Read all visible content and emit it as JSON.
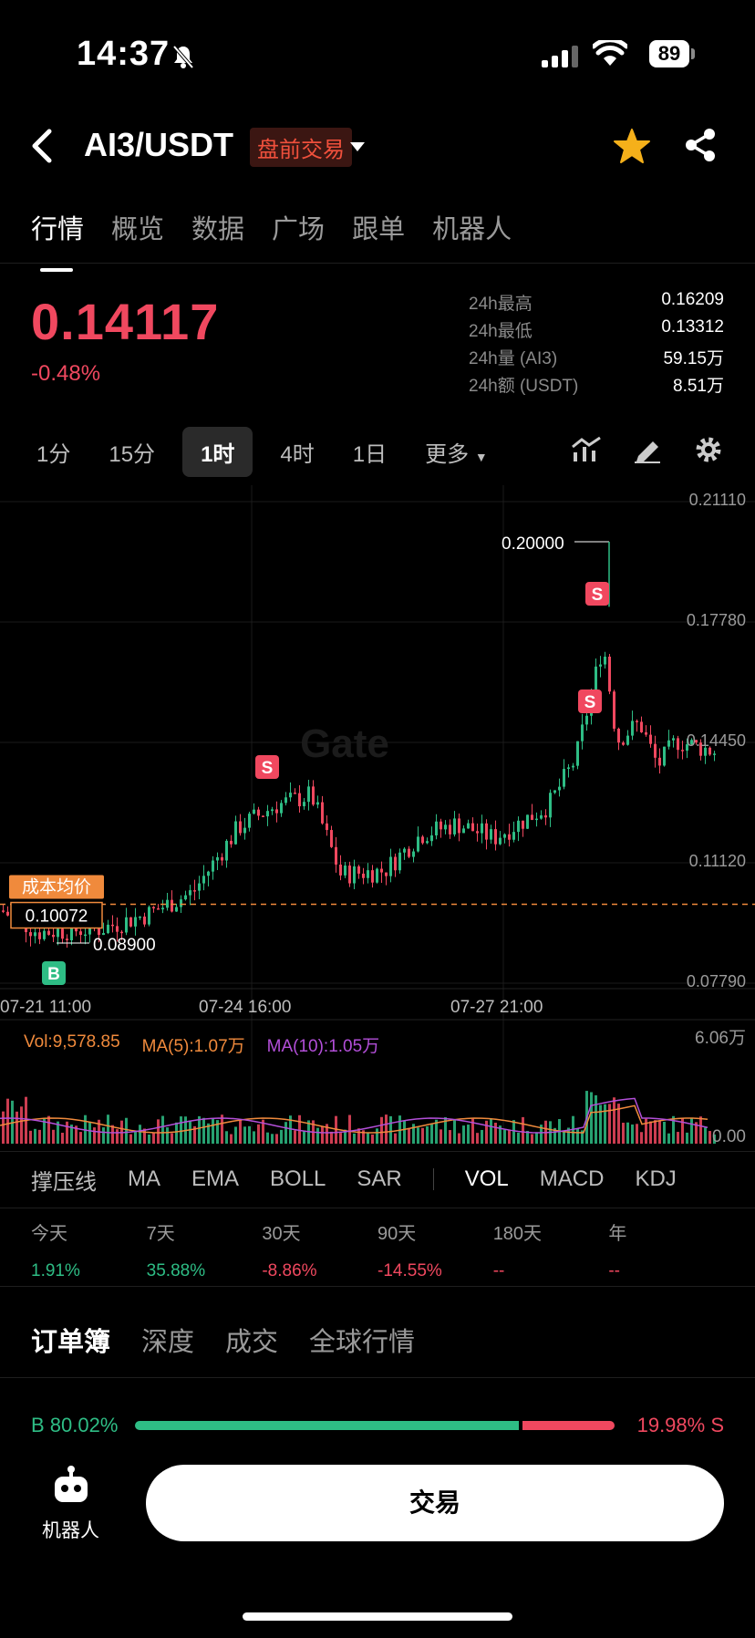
{
  "status_bar": {
    "time": "14:37",
    "battery": "89"
  },
  "header": {
    "pair": "AI3/USDT",
    "badge": "盘前交易"
  },
  "tabs": [
    "行情",
    "概览",
    "数据",
    "广场",
    "跟单",
    "机器人"
  ],
  "price": {
    "last": "0.14117",
    "change": "-0.48%"
  },
  "stats": [
    {
      "label": "24h最高",
      "value": "0.16209"
    },
    {
      "label": "24h最低",
      "value": "0.13312"
    },
    {
      "label": "24h量 (AI3)",
      "value": "59.15万"
    },
    {
      "label": "24h额 (USDT)",
      "value": "8.51万"
    }
  ],
  "intervals": [
    "1分",
    "15分",
    "1时",
    "4时",
    "1日",
    "更多"
  ],
  "chart_data": {
    "type": "candlestick",
    "y_ticks": [
      "0.21110",
      "0.17780",
      "0.14450",
      "0.11120",
      "0.07790"
    ],
    "x_ticks": [
      "07-21 11:00",
      "07-24 16:00",
      "07-27 21:00"
    ],
    "high_label": "0.20000",
    "low_label": "0.08900",
    "cost_label": "成本均价",
    "cost_value": "0.10072",
    "markers": [
      "S",
      "S",
      "S",
      "B"
    ],
    "watermark": "Gate",
    "volume": {
      "vol": "Vol:9,578.85",
      "ma5": "MA(5):1.07万",
      "ma10": "MA(10):1.05万",
      "y_max": "6.06万",
      "y_min": "0.00"
    }
  },
  "indicators": [
    "撑压线",
    "MA",
    "EMA",
    "BOLL",
    "SAR",
    "VOL",
    "MACD",
    "KDJ"
  ],
  "performance": [
    {
      "label": "今天",
      "value": "1.91%",
      "dir": "up"
    },
    {
      "label": "7天",
      "value": "35.88%",
      "dir": "up"
    },
    {
      "label": "30天",
      "value": "-8.86%",
      "dir": "down"
    },
    {
      "label": "90天",
      "value": "-14.55%",
      "dir": "down"
    },
    {
      "label": "180天",
      "value": "--",
      "dir": "down"
    },
    {
      "label": "年",
      "value": "--",
      "dir": "down"
    }
  ],
  "orderbook_tabs": [
    "订单簿",
    "深度",
    "成交",
    "全球行情"
  ],
  "ratio": {
    "buy": "B 80.02%",
    "sell": "19.98% S",
    "buy_fraction": 0.8002
  },
  "bottom": {
    "robot_label": "机器人",
    "trade_label": "交易"
  }
}
